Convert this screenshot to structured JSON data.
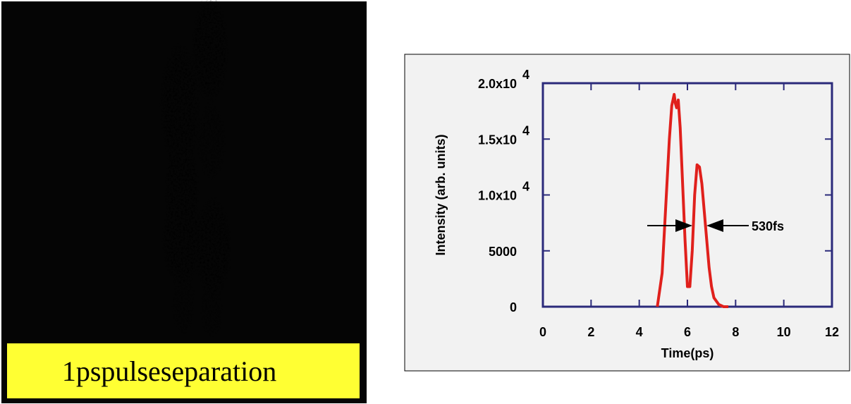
{
  "image": {
    "caption": "1pspulseseparation"
  },
  "chart_data": {
    "type": "line",
    "xlabel": "Time(ps)",
    "ylabel": "Intensity (arb. units)",
    "color": "#e0201c",
    "annotation": "530fs",
    "x": [
      4.75,
      4.95,
      5.1,
      5.25,
      5.35,
      5.45,
      5.5,
      5.55,
      5.62,
      5.7,
      5.8,
      5.9,
      6.0,
      6.1,
      6.2,
      6.3,
      6.4,
      6.5,
      6.6,
      6.7,
      6.8,
      6.9,
      7.0,
      7.1,
      7.3,
      7.5,
      7.7
    ],
    "values": [
      0,
      3000,
      9000,
      15000,
      18000,
      19000,
      18200,
      17800,
      18500,
      16000,
      11000,
      6000,
      1800,
      1800,
      5000,
      10000,
      12700,
      12500,
      11000,
      8500,
      6000,
      3500,
      1800,
      800,
      200,
      0,
      0
    ],
    "xlim": [
      0,
      12
    ],
    "xticks": [
      0,
      2,
      4,
      6,
      8,
      10,
      12
    ],
    "ylim": [
      0,
      20000
    ],
    "yticks": [
      0,
      5000,
      {
        "value": 10000,
        "label": "1.0x10",
        "superscript": "4"
      },
      {
        "value": 15000,
        "label": "1.5x10",
        "superscript": "4"
      },
      {
        "value": 20000,
        "label": "2.0x10",
        "superscript": "4"
      }
    ]
  }
}
